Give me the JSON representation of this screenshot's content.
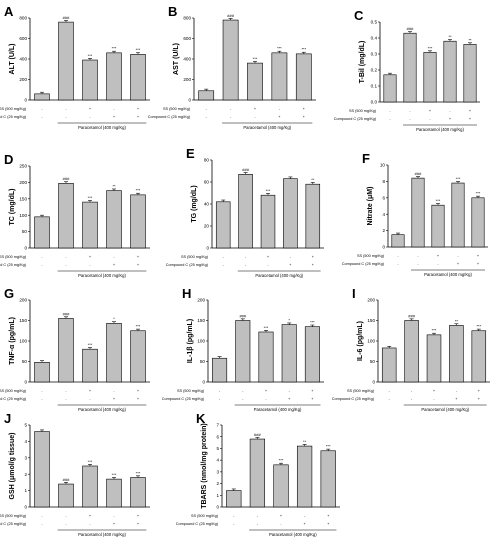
{
  "chart_data": [
    {
      "letter": "A",
      "type": "bar",
      "ylabel": "ALT (U/L)",
      "ylim": [
        0,
        800
      ],
      "yticks": [
        0,
        200,
        400,
        600,
        800
      ],
      "values": [
        60,
        760,
        390,
        460,
        445
      ],
      "sig": [
        "",
        "###",
        "***",
        "***",
        "***"
      ],
      "row1_label": "SS (500 mg/Kg)",
      "row2_label": "Compound C (25 mg/Kg)",
      "row1": [
        "-",
        "-",
        "+",
        "-",
        "+"
      ],
      "row2": [
        "-",
        "-",
        "-",
        "+",
        "+"
      ],
      "group_label": "Paracetamol (400 mg/Kg)"
    },
    {
      "letter": "B",
      "type": "bar",
      "ylabel": "AST (U/L)",
      "ylim": [
        0,
        800
      ],
      "yticks": [
        0,
        200,
        400,
        600,
        800
      ],
      "values": [
        90,
        780,
        360,
        460,
        450
      ],
      "sig": [
        "",
        "###",
        "***",
        "***",
        "***"
      ],
      "row1_label": "SS (500 mg/Kg)",
      "row2_label": "Compound C (25 mg/Kg)",
      "row1": [
        "-",
        "-",
        "+",
        "-",
        "+"
      ],
      "row2": [
        "-",
        "-",
        "-",
        "+",
        "+"
      ],
      "group_label": "Paracetamol (400 mg/Kg)"
    },
    {
      "letter": "C",
      "type": "bar",
      "ylabel": "T-Bil (mg/dL)",
      "ylim": [
        0,
        0.5
      ],
      "yticks": [
        0.0,
        0.1,
        0.2,
        0.3,
        0.4,
        0.5
      ],
      "values": [
        0.17,
        0.43,
        0.31,
        0.38,
        0.36
      ],
      "sig": [
        "",
        "###",
        "***",
        "**",
        "**"
      ],
      "row1_label": "SS (500 mg/Kg)",
      "row2_label": "Compound C (25 mg/Kg)",
      "row1": [
        "-",
        "-",
        "+",
        "-",
        "+"
      ],
      "row2": [
        "-",
        "-",
        "-",
        "+",
        "+"
      ],
      "group_label": "Paracetamol (400 mg/Kg)"
    },
    {
      "letter": "D",
      "type": "bar",
      "ylabel": "TC (mg/dL)",
      "ylim": [
        0,
        250
      ],
      "yticks": [
        0,
        50,
        100,
        150,
        200,
        250
      ],
      "values": [
        95,
        197,
        140,
        175,
        162
      ],
      "sig": [
        "",
        "###",
        "***",
        "**",
        "***"
      ],
      "row1_label": "SS (500 mg/Kg)",
      "row2_label": "Compound C (25 mg/Kg)",
      "row1": [
        "-",
        "-",
        "+",
        "-",
        "+"
      ],
      "row2": [
        "-",
        "-",
        "-",
        "+",
        "+"
      ],
      "group_label": "Paracetamol (400 mg/Kg)"
    },
    {
      "letter": "E",
      "type": "bar",
      "ylabel": "TG (mg/dL)",
      "ylim": [
        0,
        80
      ],
      "yticks": [
        0,
        20,
        40,
        60,
        80
      ],
      "values": [
        42,
        67,
        48,
        63,
        58
      ],
      "sig": [
        "",
        "###",
        "***",
        "",
        "**"
      ],
      "row1_label": "SS (500 mg/Kg)",
      "row2_label": "Compound C (25 mg/Kg)",
      "row1": [
        "-",
        "-",
        "+",
        "-",
        "+"
      ],
      "row2": [
        "-",
        "-",
        "-",
        "+",
        "+"
      ],
      "group_label": "Paracetamol (400 mg/Kg)"
    },
    {
      "letter": "F",
      "type": "bar",
      "ylabel": "Nitrate (μM)",
      "ylim": [
        0,
        10
      ],
      "yticks": [
        0,
        2,
        4,
        6,
        8,
        10
      ],
      "values": [
        1.5,
        8.4,
        5.1,
        7.8,
        6.0
      ],
      "sig": [
        "",
        "###",
        "***",
        "***",
        "***"
      ],
      "row1_label": "SS (500 mg/Kg)",
      "row2_label": "Compound C (25 mg/Kg)",
      "row1": [
        "-",
        "-",
        "+",
        "-",
        "+"
      ],
      "row2": [
        "-",
        "-",
        "-",
        "+",
        "+"
      ],
      "group_label": "Paracetamol (400 mg/Kg)"
    },
    {
      "letter": "G",
      "type": "bar",
      "ylabel": "TNF-α (pg/mL)",
      "ylim": [
        0,
        200
      ],
      "yticks": [
        0,
        50,
        100,
        150,
        200
      ],
      "values": [
        48,
        155,
        80,
        143,
        125
      ],
      "sig": [
        "",
        "###",
        "***",
        "*",
        "***"
      ],
      "row1_label": "SS (500 mg/Kg)",
      "row2_label": "Compound C (25 mg/Kg)",
      "row1": [
        "-",
        "-",
        "+",
        "-",
        "+"
      ],
      "row2": [
        "-",
        "-",
        "-",
        "+",
        "+"
      ],
      "group_label": "Paracetamol (400 mg/Kg)"
    },
    {
      "letter": "H",
      "type": "bar",
      "ylabel": "IL-1β (pg/mL)",
      "ylim": [
        0,
        200
      ],
      "yticks": [
        0,
        50,
        100,
        150,
        200
      ],
      "values": [
        58,
        150,
        122,
        140,
        135
      ],
      "sig": [
        "",
        "###",
        "***",
        "*",
        "***"
      ],
      "row1_label": "SS (500 mg/Kg)",
      "row2_label": "Compound C (25 mg/Kg)",
      "row1": [
        "-",
        "-",
        "+",
        "-",
        "+"
      ],
      "row2": [
        "-",
        "-",
        "-",
        "+",
        "+"
      ],
      "group_label": "Paracetamol (400 mg/Kg)"
    },
    {
      "letter": "I",
      "type": "bar",
      "ylabel": "IL-6 (pg/mL)",
      "ylim": [
        0,
        200
      ],
      "yticks": [
        0,
        50,
        100,
        150,
        200
      ],
      "values": [
        83,
        150,
        115,
        138,
        125
      ],
      "sig": [
        "",
        "###",
        "***",
        "**",
        "***"
      ],
      "row1_label": "SS (500 mg/Kg)",
      "row2_label": "Compound C (25 mg/Kg)",
      "row1": [
        "-",
        "-",
        "+",
        "-",
        "+"
      ],
      "row2": [
        "-",
        "-",
        "-",
        "+",
        "+"
      ],
      "group_label": "Paracetamol (400 mg/Kg)"
    },
    {
      "letter": "J",
      "type": "bar",
      "ylabel": "GSH (μmol/g tissue)",
      "ylim": [
        0,
        5
      ],
      "yticks": [
        0,
        1,
        2,
        3,
        4,
        5
      ],
      "values": [
        4.6,
        1.4,
        2.5,
        1.7,
        1.8
      ],
      "sig": [
        "",
        "###",
        "***",
        "***",
        "***"
      ],
      "row1_label": "SS (500 mg/Kg)",
      "row2_label": "Compound C (25 mg/Kg)",
      "row1": [
        "-",
        "-",
        "+",
        "-",
        "+"
      ],
      "row2": [
        "-",
        "-",
        "-",
        "+",
        "+"
      ],
      "group_label": "Paracetamol (400 mg/Kg)"
    },
    {
      "letter": "K",
      "type": "bar",
      "ylabel": "TBARS (nmol/mg protein)",
      "ylim": [
        0,
        7
      ],
      "yticks": [
        0,
        1,
        2,
        3,
        4,
        5,
        6,
        7
      ],
      "values": [
        1.4,
        5.8,
        3.6,
        5.2,
        4.8
      ],
      "sig": [
        "",
        "###",
        "***",
        "**",
        "***"
      ],
      "row1_label": "SS (500 mg/Kg)",
      "row2_label": "Compound C (25 mg/Kg)",
      "row1": [
        "-",
        "-",
        "+",
        "-",
        "+"
      ],
      "row2": [
        "-",
        "-",
        "-",
        "+",
        "+"
      ],
      "group_label": "Paracetamol (400 mg/Kg)"
    }
  ],
  "style": {
    "bar_fill": "#bfbfbf",
    "bar_stroke": "#000000",
    "axis_color": "#000000"
  }
}
